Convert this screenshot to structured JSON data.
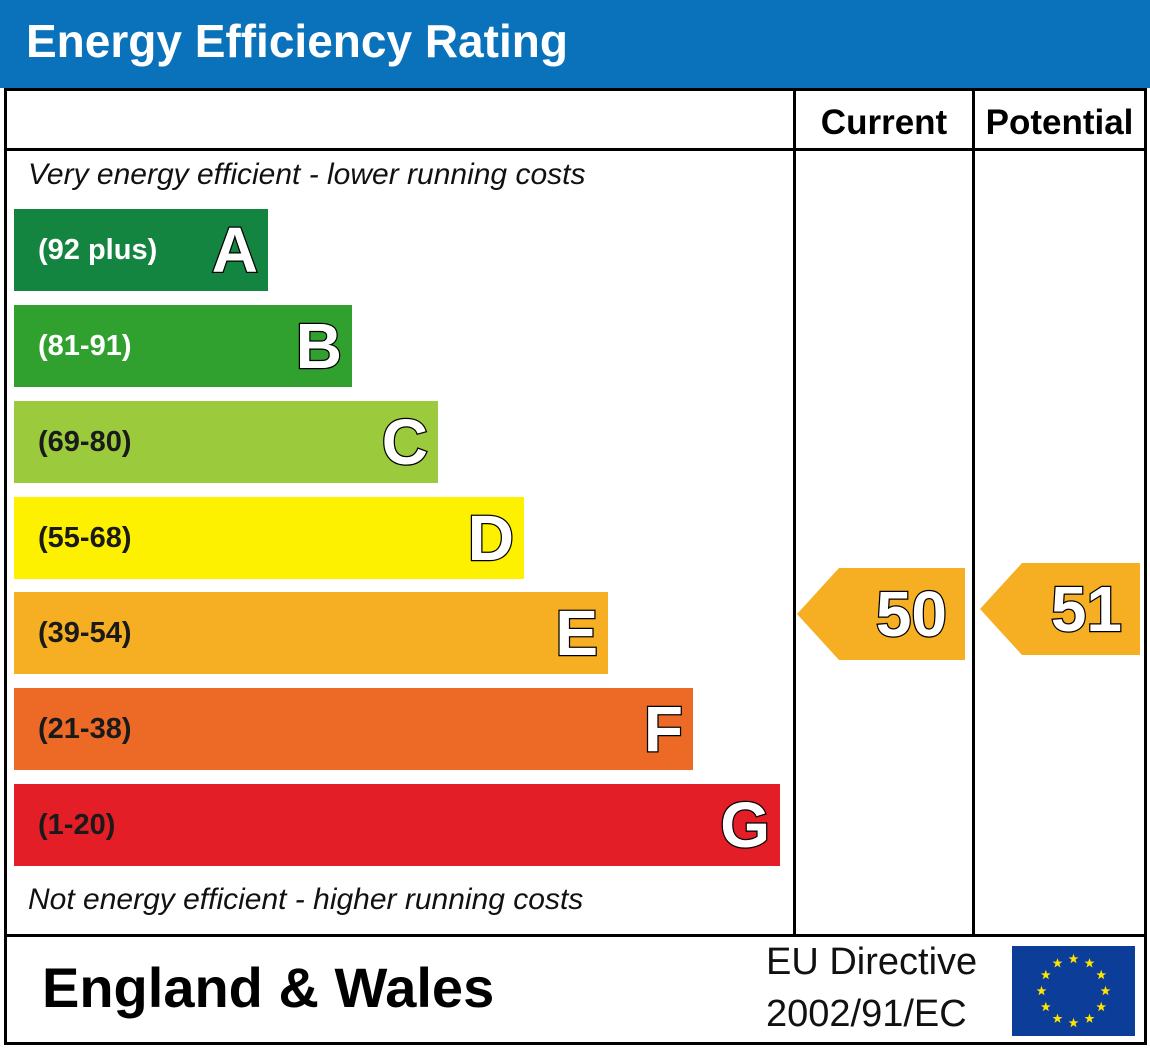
{
  "header": {
    "title": "Energy Efficiency Rating"
  },
  "columns": {
    "current": "Current",
    "potential": "Potential"
  },
  "notes": {
    "top": "Very energy efficient - lower running costs",
    "bottom": "Not energy efficient - higher running costs"
  },
  "bands": [
    {
      "range": "(92 plus)",
      "letter": "A",
      "color": "#138540",
      "text_color": "#ffffff"
    },
    {
      "range": "(81-91)",
      "letter": "B",
      "color": "#30a12f",
      "text_color": "#ffffff"
    },
    {
      "range": "(69-80)",
      "letter": "C",
      "color": "#9bca3c",
      "text_color": "#1a1a1a"
    },
    {
      "range": "(55-68)",
      "letter": "D",
      "color": "#fef100",
      "text_color": "#1a1a1a"
    },
    {
      "range": "(39-54)",
      "letter": "E",
      "color": "#f6ae22",
      "text_color": "#1a1a1a"
    },
    {
      "range": "(21-38)",
      "letter": "F",
      "color": "#ec6a25",
      "text_color": "#1a1a1a"
    },
    {
      "range": "(1-20)",
      "letter": "G",
      "color": "#e31e26",
      "text_color": "#1a1a1a"
    }
  ],
  "ratings": {
    "current": {
      "value": "50",
      "band": "E",
      "color": "#f6ae22"
    },
    "potential": {
      "value": "51",
      "band": "E",
      "color": "#f6ae22"
    }
  },
  "footer": {
    "region": "England & Wales",
    "directive_line1": "EU Directive",
    "directive_line2": "2002/91/EC",
    "flag_colors": {
      "field": "#0c3d99",
      "stars": "#ffe600"
    }
  }
}
